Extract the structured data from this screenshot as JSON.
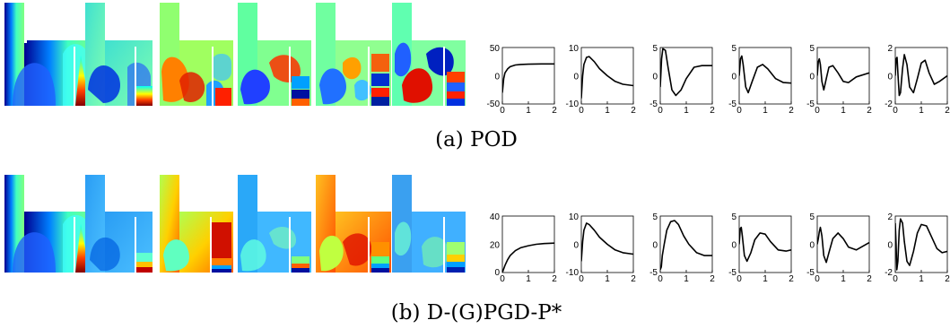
{
  "figure": {
    "rows": [
      {
        "caption": "(a) POD",
        "plots": [
          {
            "y_ticks": [
              "50",
              "0",
              "-50"
            ],
            "ylim": [
              -50,
              50
            ]
          },
          {
            "y_ticks": [
              "10",
              "0",
              "-10"
            ],
            "ylim": [
              -10,
              10
            ]
          },
          {
            "y_ticks": [
              "5",
              "0",
              "-5"
            ],
            "ylim": [
              -5,
              5
            ]
          },
          {
            "y_ticks": [
              "5",
              "0",
              "-5"
            ],
            "ylim": [
              -5,
              5
            ]
          },
          {
            "y_ticks": [
              "5",
              "0",
              "-5"
            ],
            "ylim": [
              -5,
              5
            ]
          },
          {
            "y_ticks": [
              "2",
              "0",
              "-2"
            ],
            "ylim": [
              -2,
              2
            ]
          }
        ]
      },
      {
        "caption": "(b) D-(G)PGD-P*",
        "plots": [
          {
            "y_ticks": [
              "40",
              "20",
              "0"
            ],
            "ylim": [
              0,
              40
            ]
          },
          {
            "y_ticks": [
              "10",
              "0",
              "-10"
            ],
            "ylim": [
              -10,
              10
            ]
          },
          {
            "y_ticks": [
              "5",
              "0",
              "-5"
            ],
            "ylim": [
              -5,
              5
            ]
          },
          {
            "y_ticks": [
              "5",
              "0",
              "-5"
            ],
            "ylim": [
              -5,
              5
            ]
          },
          {
            "y_ticks": [
              "5",
              "0",
              "-5"
            ],
            "ylim": [
              -5,
              5
            ]
          },
          {
            "y_ticks": [
              "2",
              "0",
              "-2"
            ],
            "ylim": [
              -2,
              2
            ]
          }
        ]
      }
    ],
    "x_ticks": [
      "0",
      "1",
      "2"
    ],
    "xlim": [
      0,
      2
    ]
  },
  "chart_data": [
    {
      "type": "line",
      "x": [
        0,
        0.05,
        0.1,
        0.2,
        0.3,
        0.5,
        0.7,
        1.0,
        1.5,
        2.0
      ],
      "series": [
        {
          "values": [
            -30,
            -5,
            5,
            12,
            16,
            19,
            20,
            20.5,
            21,
            21
          ]
        }
      ],
      "ylim": [
        -50,
        50
      ],
      "xlim": [
        0,
        2
      ]
    },
    {
      "type": "line",
      "x": [
        0,
        0.05,
        0.1,
        0.2,
        0.3,
        0.5,
        0.7,
        1.0,
        1.3,
        1.6,
        2.0
      ],
      "series": [
        {
          "values": [
            -8,
            0,
            4,
            6.5,
            6.8,
            5,
            2.5,
            0,
            -2,
            -3,
            -3.5
          ]
        }
      ],
      "ylim": [
        -10,
        10
      ],
      "xlim": [
        0,
        2
      ]
    },
    {
      "type": "line",
      "x": [
        0,
        0.05,
        0.1,
        0.2,
        0.3,
        0.45,
        0.6,
        0.8,
        1.0,
        1.3,
        1.6,
        2.0
      ],
      "series": [
        {
          "values": [
            -2,
            3,
            4.8,
            4.5,
            1.5,
            -2.5,
            -3.5,
            -2.5,
            -0.5,
            1.5,
            1.8,
            1.8
          ]
        }
      ],
      "ylim": [
        -5,
        5
      ],
      "xlim": [
        0,
        2
      ]
    },
    {
      "type": "line",
      "x": [
        0,
        0.05,
        0.1,
        0.15,
        0.25,
        0.35,
        0.5,
        0.7,
        0.9,
        1.1,
        1.4,
        1.7,
        2.0
      ],
      "series": [
        {
          "values": [
            0,
            3,
            3.5,
            2,
            -2,
            -3,
            -1,
            1.5,
            2,
            1.2,
            -0.5,
            -1.2,
            -1.3
          ]
        }
      ],
      "ylim": [
        -5,
        5
      ],
      "xlim": [
        0,
        2
      ]
    },
    {
      "type": "line",
      "x": [
        0,
        0.04,
        0.08,
        0.12,
        0.18,
        0.25,
        0.35,
        0.45,
        0.6,
        0.8,
        1.0,
        1.2,
        1.5,
        2.0
      ],
      "series": [
        {
          "values": [
            0,
            2.5,
            3,
            2,
            -1,
            -2.5,
            -0.5,
            1.5,
            1.8,
            0.5,
            -1,
            -1.2,
            -0.2,
            0.5
          ]
        }
      ],
      "ylim": [
        -5,
        5
      ],
      "xlim": [
        0,
        2
      ]
    },
    {
      "type": "line",
      "x": [
        0,
        0.03,
        0.07,
        0.1,
        0.15,
        0.2,
        0.28,
        0.35,
        0.45,
        0.55,
        0.7,
        0.85,
        1.0,
        1.15,
        1.3,
        1.5,
        1.7,
        2.0
      ],
      "series": [
        {
          "values": [
            0,
            1.2,
            1.3,
            0.2,
            -1.4,
            -1.2,
            0.5,
            1.5,
            0.8,
            -0.8,
            -1.2,
            -0.2,
            0.9,
            1.1,
            0.2,
            -0.6,
            -0.4,
            0
          ]
        }
      ],
      "ylim": [
        -2,
        2
      ],
      "xlim": [
        0,
        2
      ]
    },
    {
      "type": "line",
      "x": [
        0,
        0.1,
        0.2,
        0.3,
        0.5,
        0.7,
        1.0,
        1.3,
        1.6,
        2.0
      ],
      "series": [
        {
          "values": [
            0,
            5,
            9,
            12,
            15.5,
            17.5,
            19,
            20,
            20.5,
            20.8
          ]
        }
      ],
      "ylim": [
        0,
        40
      ],
      "xlim": [
        0,
        2
      ]
    },
    {
      "type": "line",
      "x": [
        0,
        0.05,
        0.1,
        0.2,
        0.3,
        0.5,
        0.7,
        1.0,
        1.3,
        1.6,
        2.0
      ],
      "series": [
        {
          "values": [
            -6,
            1,
            5,
            7.5,
            7,
            5,
            2.5,
            0,
            -2,
            -3,
            -3.5
          ]
        }
      ],
      "ylim": [
        -10,
        10
      ],
      "xlim": [
        0,
        2
      ]
    },
    {
      "type": "line",
      "x": [
        0,
        0.04,
        0.08,
        0.15,
        0.25,
        0.4,
        0.55,
        0.7,
        0.9,
        1.1,
        1.4,
        1.7,
        2.0
      ],
      "series": [
        {
          "values": [
            -4.5,
            -4,
            -2,
            0,
            2.5,
            4,
            4.2,
            3.5,
            1.5,
            0,
            -1.5,
            -2,
            -2
          ]
        }
      ],
      "ylim": [
        -5,
        5
      ],
      "xlim": [
        0,
        2
      ]
    },
    {
      "type": "line",
      "x": [
        0,
        0.04,
        0.08,
        0.12,
        0.2,
        0.3,
        0.45,
        0.6,
        0.8,
        1.0,
        1.2,
        1.5,
        1.8,
        2.0
      ],
      "series": [
        {
          "values": [
            0,
            2.8,
            3,
            1.5,
            -2,
            -3,
            -1.5,
            0.8,
            2,
            1.8,
            0.5,
            -1,
            -1.2,
            -1
          ]
        }
      ],
      "ylim": [
        -5,
        5
      ],
      "xlim": [
        0,
        2
      ]
    },
    {
      "type": "line",
      "x": [
        0,
        0.04,
        0.08,
        0.12,
        0.18,
        0.25,
        0.35,
        0.45,
        0.6,
        0.8,
        1.0,
        1.2,
        1.5,
        2.0
      ],
      "series": [
        {
          "values": [
            0,
            1,
            2.2,
            3,
            1.5,
            -2,
            -3.2,
            -1.5,
            1,
            2,
            1,
            -0.5,
            -1,
            0.3
          ]
        }
      ],
      "ylim": [
        -5,
        5
      ],
      "xlim": [
        0,
        2
      ]
    },
    {
      "type": "line",
      "x": [
        0,
        0.03,
        0.06,
        0.1,
        0.15,
        0.2,
        0.28,
        0.35,
        0.45,
        0.55,
        0.7,
        0.85,
        1.0,
        1.2,
        1.4,
        1.6,
        1.8,
        2.0
      ],
      "series": [
        {
          "values": [
            1.5,
            0,
            -1.8,
            -1.2,
            1,
            1.8,
            1.5,
            0.2,
            -1.2,
            -1.5,
            -0.5,
            0.8,
            1.4,
            1.3,
            0.5,
            -0.3,
            -0.6,
            -0.5
          ]
        }
      ],
      "ylim": [
        -2,
        2
      ],
      "xlim": [
        0,
        2
      ]
    }
  ]
}
